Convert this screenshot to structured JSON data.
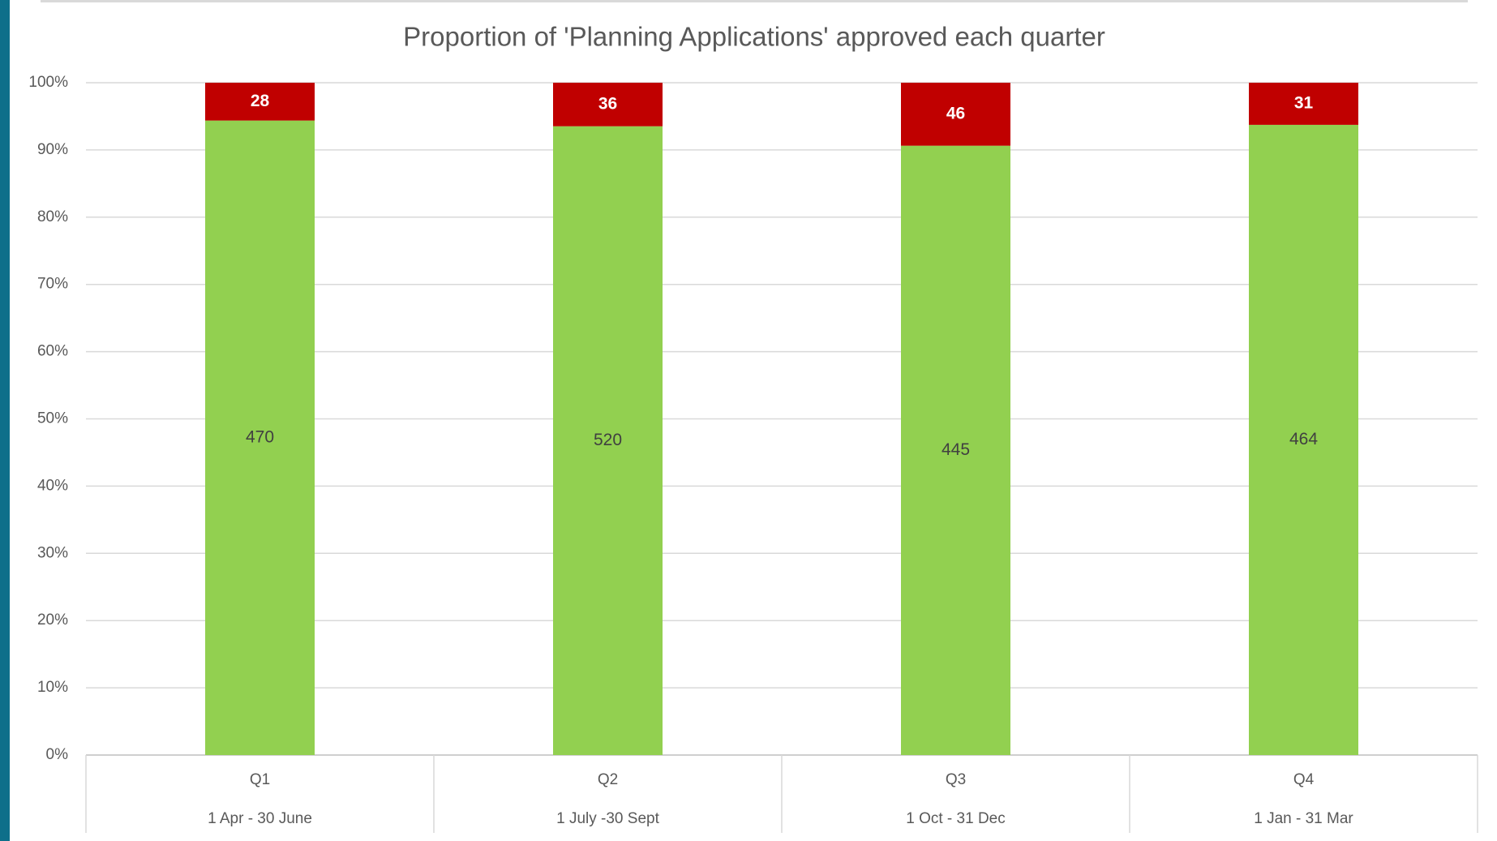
{
  "chart_data": {
    "type": "bar",
    "stacking": "percent",
    "title": "Proportion of 'Planning Applications' approved each quarter",
    "categories": [
      "Q1",
      "Q2",
      "Q3",
      "Q4"
    ],
    "category_periods": [
      "1 Apr - 30 June",
      "1 July -30 Sept",
      "1 Oct - 31 Dec",
      "1 Jan - 31 Mar"
    ],
    "series": [
      {
        "color": "#92d050",
        "values": [
          470,
          520,
          445,
          464
        ]
      },
      {
        "color": "#c00000",
        "values": [
          28,
          36,
          46,
          31
        ]
      }
    ],
    "ylim": [
      0,
      100
    ],
    "yticks": [
      {
        "value": 0,
        "label": "0%"
      },
      {
        "value": 10,
        "label": "10%"
      },
      {
        "value": 20,
        "label": "20%"
      },
      {
        "value": 30,
        "label": "30%"
      },
      {
        "value": 40,
        "label": "40%"
      },
      {
        "value": 50,
        "label": "50%"
      },
      {
        "value": 60,
        "label": "60%"
      },
      {
        "value": 70,
        "label": "70%"
      },
      {
        "value": 80,
        "label": "80%"
      },
      {
        "value": 90,
        "label": "90%"
      },
      {
        "value": 100,
        "label": "100%"
      }
    ],
    "grid": true
  }
}
